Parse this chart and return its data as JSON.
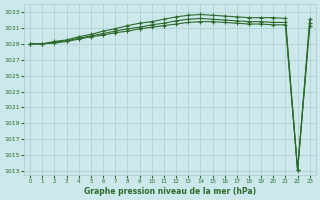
{
  "bg_color": "#cce8ea",
  "grid_color": "#aacccc",
  "line_color": "#2d6a2d",
  "marker_color": "#2d6a2d",
  "xlabel": "Graphe pression niveau de la mer (hPa)",
  "xlabel_color": "#2d6a2d",
  "ylim": [
    1012.5,
    1034.0
  ],
  "xlim": [
    -0.5,
    23.5
  ],
  "yticks": [
    1013,
    1015,
    1017,
    1019,
    1021,
    1023,
    1025,
    1027,
    1029,
    1031,
    1033
  ],
  "xticks": [
    0,
    1,
    2,
    3,
    4,
    5,
    6,
    7,
    8,
    9,
    10,
    11,
    12,
    13,
    14,
    15,
    16,
    17,
    18,
    19,
    20,
    21,
    22,
    23
  ],
  "series": [
    [
      1029.0,
      1029.0,
      1029.3,
      1029.5,
      1029.9,
      1030.2,
      1030.6,
      1030.9,
      1031.3,
      1031.6,
      1031.8,
      1032.1,
      1032.4,
      1032.6,
      1032.7,
      1032.6,
      1032.5,
      1032.4,
      1032.3,
      1032.3,
      1032.3,
      1032.2,
      1013.1,
      1032.1
    ],
    [
      1029.0,
      1029.0,
      1029.1,
      1029.3,
      1029.6,
      1029.9,
      1030.1,
      1030.4,
      1030.6,
      1030.9,
      1031.1,
      1031.3,
      1031.5,
      1031.7,
      1031.8,
      1031.8,
      1031.7,
      1031.6,
      1031.5,
      1031.5,
      1031.4,
      1031.4,
      1013.1,
      1031.2
    ],
    [
      1029.0,
      1029.0,
      1029.2,
      1029.4,
      1029.7,
      1030.0,
      1030.3,
      1030.6,
      1030.9,
      1031.1,
      1031.4,
      1031.6,
      1031.9,
      1032.1,
      1032.2,
      1032.1,
      1032.0,
      1031.9,
      1031.8,
      1031.8,
      1031.7,
      1031.7,
      1013.1,
      1031.6
    ]
  ]
}
